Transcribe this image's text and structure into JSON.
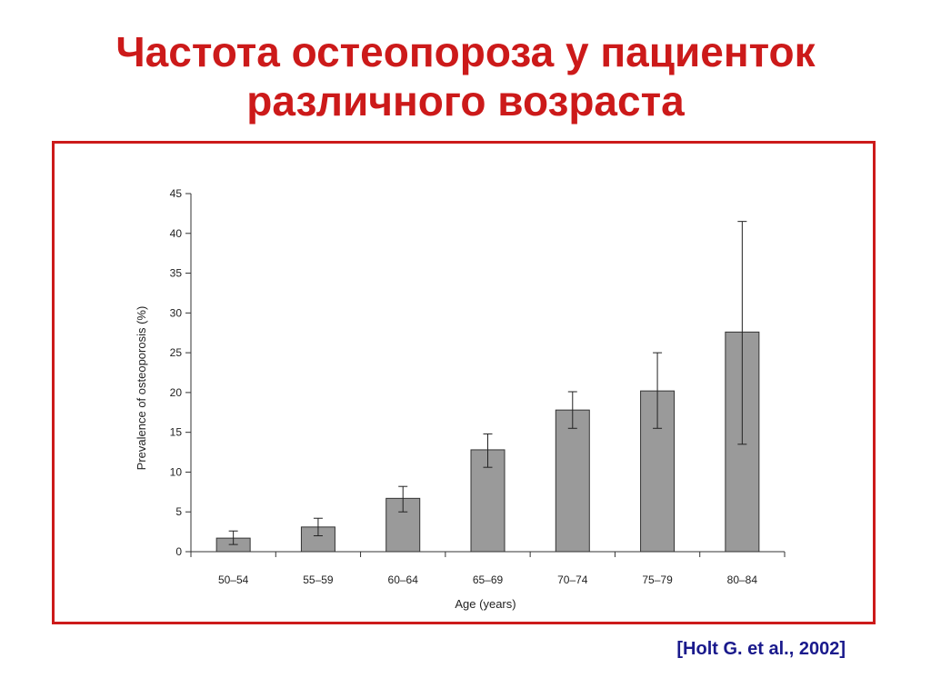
{
  "title": {
    "line1": "Частота остеопороза у пациенток",
    "line2": "различного возраста"
  },
  "citation": "[Holt G. et al., 2002]",
  "colors": {
    "title": "#cc1a1a",
    "frame": "#cc1a1a",
    "bar_fill": "#9a9a9a",
    "citation": "#1a1a8c"
  },
  "chart_data": {
    "type": "bar",
    "categories": [
      "50–54",
      "55–59",
      "60–64",
      "65–69",
      "70–74",
      "75–79",
      "80–84"
    ],
    "values": [
      1.7,
      3.1,
      6.7,
      12.8,
      17.8,
      20.2,
      27.6
    ],
    "error_low": [
      0.9,
      2.0,
      5.0,
      10.6,
      15.5,
      15.5,
      13.5
    ],
    "error_high": [
      2.6,
      4.2,
      8.2,
      14.8,
      20.1,
      25.0,
      41.5
    ],
    "xlabel": "Age (years)",
    "ylabel": "Prevalence of osteoporosis (%)",
    "ylim": [
      0,
      45
    ],
    "yticks": [
      0,
      5,
      10,
      15,
      20,
      25,
      30,
      35,
      40,
      45
    ],
    "grid": false
  }
}
